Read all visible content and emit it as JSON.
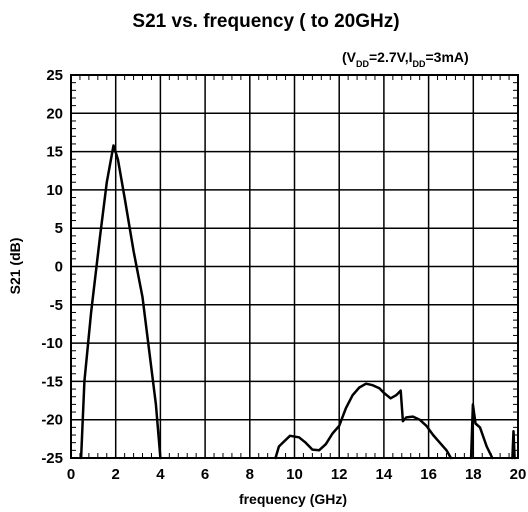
{
  "chart_data": {
    "type": "line",
    "title": "S21 vs. frequency ( to 20GHz)",
    "conditions": {
      "open": "(V",
      "vdd_sub": "DD",
      "mid": "=2.7V,I",
      "idd_sub": "DD",
      "close": "=3mA)"
    },
    "xlabel": "frequency (GHz)",
    "ylabel": "S21 (dB)",
    "xlim": [
      0,
      20
    ],
    "ylim": [
      -25,
      25
    ],
    "xticks": [
      0,
      2,
      4,
      6,
      8,
      10,
      12,
      14,
      16,
      18,
      20
    ],
    "yticks": [
      25,
      20,
      15,
      10,
      5,
      0,
      -5,
      -10,
      -15,
      -20,
      -25
    ],
    "grid": true,
    "series": [
      {
        "color": "#000000",
        "segments": [
          [
            [
              0.45,
              -25
            ],
            [
              0.6,
              -15
            ],
            [
              0.9,
              -6
            ],
            [
              1.3,
              4
            ],
            [
              1.6,
              11
            ],
            [
              1.9,
              15.8
            ],
            [
              2.1,
              14
            ],
            [
              2.4,
              9
            ],
            [
              2.8,
              2
            ],
            [
              3.2,
              -4
            ],
            [
              3.5,
              -11
            ],
            [
              3.8,
              -18
            ],
            [
              4.0,
              -25
            ]
          ],
          [
            [
              9.15,
              -25
            ],
            [
              9.3,
              -23.5
            ],
            [
              9.55,
              -22.8
            ],
            [
              9.8,
              -22.1
            ],
            [
              10.2,
              -22.3
            ],
            [
              10.5,
              -23
            ],
            [
              10.8,
              -23.9
            ],
            [
              11.1,
              -24
            ],
            [
              11.4,
              -23.2
            ],
            [
              11.7,
              -21.8
            ],
            [
              12.0,
              -20.8
            ],
            [
              12.3,
              -18.5
            ],
            [
              12.6,
              -16.8
            ],
            [
              12.9,
              -15.8
            ],
            [
              13.2,
              -15.3
            ],
            [
              13.5,
              -15.5
            ],
            [
              13.8,
              -15.9
            ],
            [
              14.0,
              -16.5
            ],
            [
              14.3,
              -17.2
            ],
            [
              14.55,
              -16.8
            ],
            [
              14.75,
              -16.2
            ],
            [
              14.85,
              -20.2
            ],
            [
              15.0,
              -19.7
            ],
            [
              15.3,
              -19.6
            ],
            [
              15.6,
              -20
            ],
            [
              15.9,
              -20.8
            ],
            [
              16.2,
              -22
            ],
            [
              16.5,
              -23
            ],
            [
              16.8,
              -24
            ],
            [
              17.0,
              -25
            ]
          ],
          [
            [
              17.9,
              -25
            ],
            [
              17.98,
              -18
            ],
            [
              18.1,
              -20.5
            ],
            [
              18.3,
              -21
            ],
            [
              18.6,
              -23.5
            ],
            [
              18.85,
              -25
            ]
          ],
          [
            [
              19.75,
              -25
            ],
            [
              19.8,
              -21.5
            ],
            [
              19.85,
              -25
            ]
          ]
        ]
      }
    ]
  }
}
